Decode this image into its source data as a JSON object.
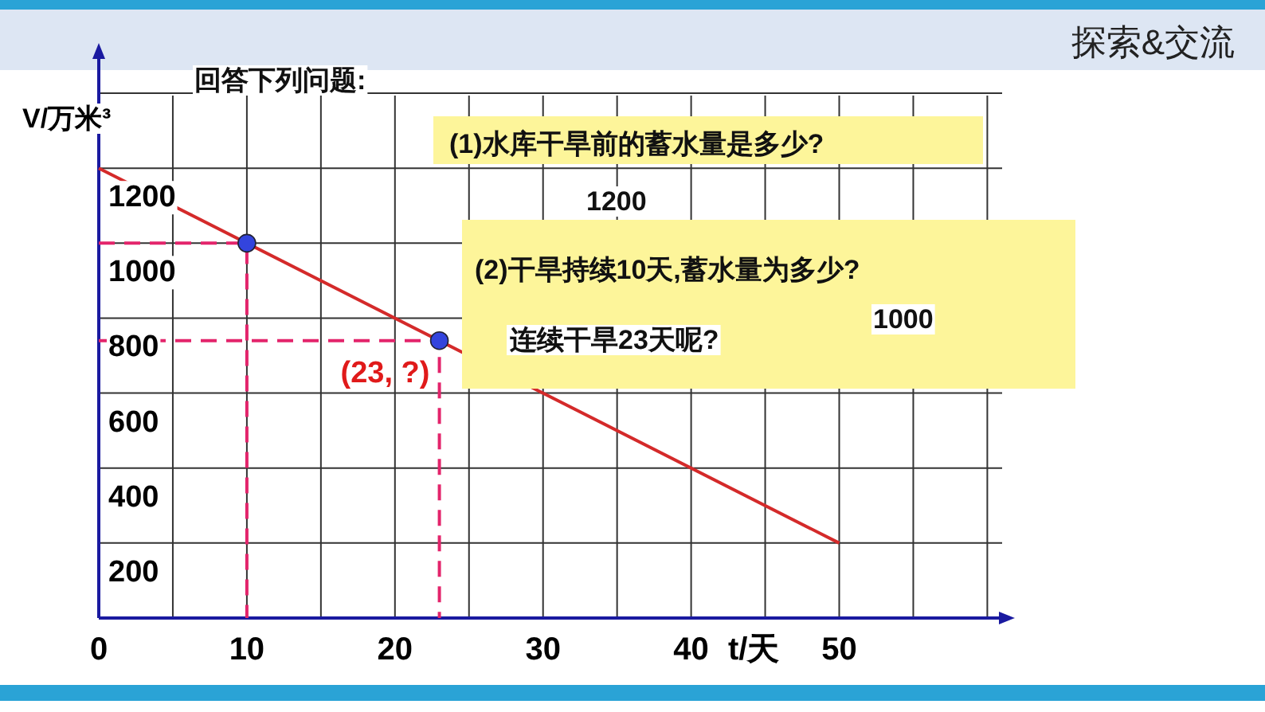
{
  "chart_data": {
    "type": "line",
    "title": "探索&交流",
    "xlabel": "t/天",
    "ylabel": "V/万米³",
    "xlim": [
      0,
      61
    ],
    "ylim": [
      0,
      1500
    ],
    "xticks": [
      0,
      {
        "value": 5,
        "label": null
      },
      10,
      {
        "value": 15,
        "label": null
      },
      20,
      {
        "value": 25,
        "label": null
      },
      30,
      {
        "value": 35,
        "label": null
      },
      40,
      {
        "value": 45,
        "label": null
      },
      50,
      {
        "value": 55,
        "label": null
      },
      {
        "value": 60,
        "label": null
      }
    ],
    "yticks": [
      200,
      400,
      600,
      800,
      1000,
      1200,
      {
        "value": 1400,
        "label": null
      }
    ],
    "grid": true,
    "series": [
      {
        "color": "#d42a2a",
        "x": [
          0,
          50
        ],
        "values": [
          1200,
          200
        ],
        "line_style": "solid",
        "marker": "none"
      },
      {
        "color": "#e3246b",
        "x": [
          0,
          10,
          10
        ],
        "values": [
          1000,
          1000,
          0
        ],
        "line_style": "dashed",
        "marker": "none"
      },
      {
        "color": "#e3246b",
        "x": [
          0,
          23,
          23
        ],
        "values": [
          740,
          740,
          0
        ],
        "line_style": "dashed",
        "marker": "none"
      },
      {
        "type": "scatter",
        "color": "#3344dd",
        "x": [
          10,
          23
        ],
        "values": [
          1000,
          740
        ],
        "marker": "circle"
      }
    ],
    "annotations": [
      "回答下列问题:",
      "(1)水库干旱前的蓄水量是多少?",
      "1200",
      "(2)干旱持续10天,蓄水量为多少?",
      "1000",
      "连续干旱23天呢?",
      {
        "text": "(23, ?)",
        "x": 23,
        "y": 740
      }
    ]
  }
}
